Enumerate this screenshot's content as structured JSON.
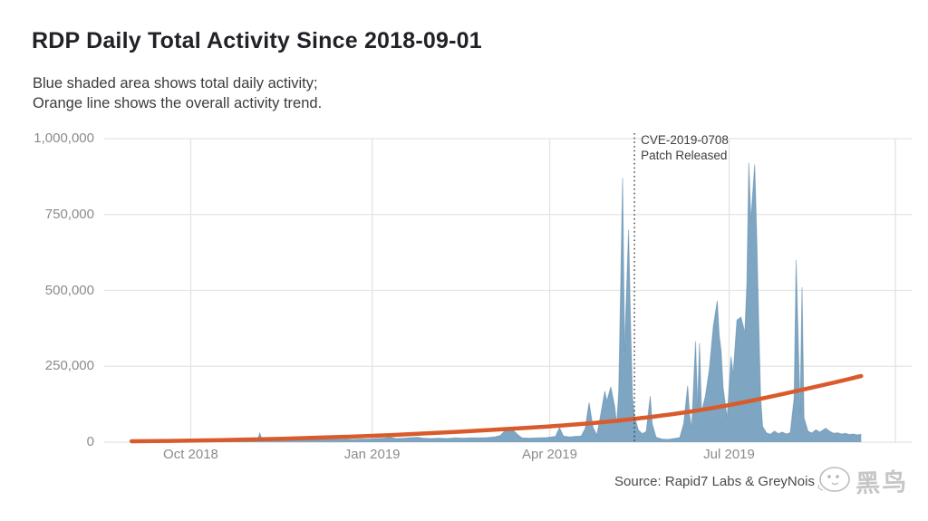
{
  "header": {
    "title": "RDP Daily Total Activity Since 2018-09-01",
    "subtitle_line1": "Blue shaded area shows total daily activity;",
    "subtitle_line2": "Orange line shows the overall activity trend."
  },
  "annotation": {
    "line1": "CVE-2019-0708",
    "line2": "Patch Released"
  },
  "source": {
    "text": "Source: Rapid7 Labs & GreyNois",
    "watermark_text": "黑鸟"
  },
  "colors": {
    "area_fill": "#7ea5c2",
    "area_edge": "#5f8cad",
    "trend": "#d95b2b",
    "grid": "#e4e4e4",
    "panel_edge": "#e0e0e0",
    "event_line": "#424242",
    "axis_text": "#8b8b8b",
    "title_text": "#212127"
  },
  "chart_data": {
    "type": "area",
    "title": "RDP Daily Total Activity Since 2018-09-01",
    "xlabel": "",
    "ylabel": "",
    "start_date": "2018-09-01",
    "x_range_days": [
      0,
      370
    ],
    "ylim": [
      0,
      1000000
    ],
    "grid": true,
    "legend_position": "none (described in subtitle)",
    "y_axis": {
      "ticks": [
        0,
        250000,
        500000,
        750000,
        1000000
      ],
      "tick_labels": [
        "0",
        "250,000",
        "500,000",
        "750,000",
        "1,000,000"
      ]
    },
    "x_axis": {
      "tick_labels": [
        {
          "label": "Oct 2018",
          "day": 30
        },
        {
          "label": "Jan 2019",
          "day": 122
        },
        {
          "label": "Apr 2019",
          "day": 212
        },
        {
          "label": "Jul 2019",
          "day": 303
        }
      ]
    },
    "event_line": {
      "day": 255,
      "date": "2019-05-14",
      "label_line1": "CVE-2019-0708",
      "label_line2": "Patch Released",
      "style": "dotted-vertical"
    },
    "series": [
      {
        "name": "Total daily activity",
        "kind": "area",
        "color": "#7ea5c2",
        "points": [
          [
            0,
            4000
          ],
          [
            3,
            5000
          ],
          [
            7,
            4000
          ],
          [
            11,
            5000
          ],
          [
            15,
            4000
          ],
          [
            19,
            5000
          ],
          [
            23,
            6000
          ],
          [
            27,
            5000
          ],
          [
            30,
            6000
          ],
          [
            34,
            5000
          ],
          [
            38,
            6000
          ],
          [
            42,
            5000
          ],
          [
            46,
            6000
          ],
          [
            50,
            6000
          ],
          [
            54,
            5000
          ],
          [
            58,
            6000
          ],
          [
            62,
            7000
          ],
          [
            64,
            8000
          ],
          [
            65,
            30000
          ],
          [
            66,
            12000
          ],
          [
            68,
            7000
          ],
          [
            72,
            8000
          ],
          [
            76,
            7000
          ],
          [
            80,
            8000
          ],
          [
            84,
            8000
          ],
          [
            88,
            7000
          ],
          [
            92,
            9000
          ],
          [
            96,
            8000
          ],
          [
            100,
            9000
          ],
          [
            104,
            9000
          ],
          [
            108,
            10000
          ],
          [
            112,
            9000
          ],
          [
            116,
            10000
          ],
          [
            120,
            10000
          ],
          [
            124,
            12000
          ],
          [
            128,
            13000
          ],
          [
            131,
            16000
          ],
          [
            134,
            12000
          ],
          [
            138,
            13000
          ],
          [
            142,
            15000
          ],
          [
            145,
            16000
          ],
          [
            148,
            13000
          ],
          [
            152,
            12000
          ],
          [
            156,
            13000
          ],
          [
            160,
            12000
          ],
          [
            164,
            14000
          ],
          [
            168,
            13000
          ],
          [
            172,
            14000
          ],
          [
            176,
            14000
          ],
          [
            180,
            15000
          ],
          [
            184,
            17000
          ],
          [
            187,
            22000
          ],
          [
            190,
            42000
          ],
          [
            192,
            46000
          ],
          [
            194,
            36000
          ],
          [
            196,
            24000
          ],
          [
            198,
            14000
          ],
          [
            202,
            13000
          ],
          [
            206,
            14000
          ],
          [
            210,
            15000
          ],
          [
            213,
            17000
          ],
          [
            215,
            19000
          ],
          [
            217,
            48000
          ],
          [
            219,
            20000
          ],
          [
            222,
            17000
          ],
          [
            225,
            19000
          ],
          [
            228,
            20000
          ],
          [
            230,
            45000
          ],
          [
            232,
            130000
          ],
          [
            234,
            48000
          ],
          [
            236,
            24000
          ],
          [
            238,
            95000
          ],
          [
            240,
            168000
          ],
          [
            241,
            135000
          ],
          [
            243,
            182000
          ],
          [
            245,
            118000
          ],
          [
            246,
            58000
          ],
          [
            247,
            165000
          ],
          [
            248,
            500000
          ],
          [
            249,
            870000
          ],
          [
            250,
            300000
          ],
          [
            252,
            700000
          ],
          [
            253,
            400000
          ],
          [
            254,
            150000
          ],
          [
            255,
            85000
          ],
          [
            257,
            40000
          ],
          [
            259,
            28000
          ],
          [
            261,
            35000
          ],
          [
            263,
            152000
          ],
          [
            264,
            60000
          ],
          [
            266,
            16000
          ],
          [
            269,
            10000
          ],
          [
            272,
            9000
          ],
          [
            275,
            12000
          ],
          [
            278,
            15000
          ],
          [
            280,
            62000
          ],
          [
            282,
            186000
          ],
          [
            283,
            90000
          ],
          [
            284,
            46000
          ],
          [
            286,
            332000
          ],
          [
            287,
            118000
          ],
          [
            288,
            326000
          ],
          [
            289,
            100000
          ],
          [
            291,
            152000
          ],
          [
            293,
            242000
          ],
          [
            295,
            382000
          ],
          [
            297,
            466000
          ],
          [
            298,
            352000
          ],
          [
            299,
            298000
          ],
          [
            300,
            178000
          ],
          [
            302,
            80000
          ],
          [
            304,
            282000
          ],
          [
            305,
            222000
          ],
          [
            307,
            402000
          ],
          [
            309,
            412000
          ],
          [
            311,
            362000
          ],
          [
            312,
            520000
          ],
          [
            313,
            920000
          ],
          [
            314,
            730000
          ],
          [
            316,
            915000
          ],
          [
            317,
            680000
          ],
          [
            318,
            398000
          ],
          [
            319,
            148000
          ],
          [
            320,
            52000
          ],
          [
            322,
            30000
          ],
          [
            324,
            26000
          ],
          [
            326,
            36000
          ],
          [
            328,
            28000
          ],
          [
            330,
            33000
          ],
          [
            332,
            27000
          ],
          [
            334,
            31000
          ],
          [
            336,
            146000
          ],
          [
            337,
            600000
          ],
          [
            339,
            95000
          ],
          [
            340,
            510000
          ],
          [
            341,
            80000
          ],
          [
            343,
            36000
          ],
          [
            345,
            30000
          ],
          [
            347,
            41000
          ],
          [
            349,
            33000
          ],
          [
            352,
            46000
          ],
          [
            354,
            36000
          ],
          [
            356,
            29000
          ],
          [
            358,
            31000
          ],
          [
            360,
            27000
          ],
          [
            362,
            29000
          ],
          [
            364,
            25000
          ],
          [
            366,
            27000
          ],
          [
            368,
            24000
          ],
          [
            370,
            26000
          ]
        ]
      },
      {
        "name": "Overall activity trend",
        "kind": "line",
        "color": "#d95b2b",
        "points": [
          [
            0,
            3000
          ],
          [
            30,
            5000
          ],
          [
            61,
            9000
          ],
          [
            91,
            14000
          ],
          [
            122,
            21000
          ],
          [
            153,
            30000
          ],
          [
            181,
            40000
          ],
          [
            212,
            52000
          ],
          [
            242,
            68000
          ],
          [
            273,
            91000
          ],
          [
            303,
            122000
          ],
          [
            334,
            164000
          ],
          [
            356,
            196000
          ],
          [
            370,
            218000
          ]
        ]
      }
    ]
  }
}
